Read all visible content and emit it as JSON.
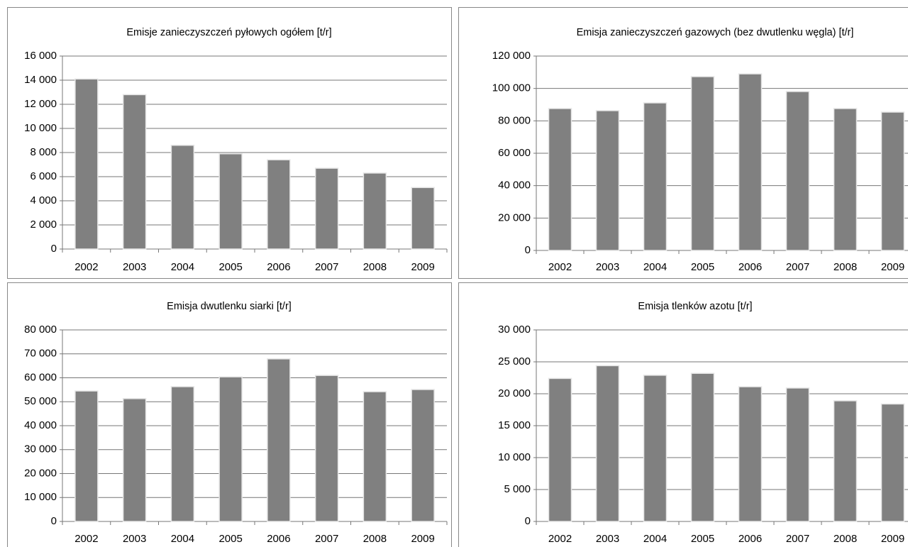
{
  "chart_data": [
    {
      "type": "bar",
      "title": "Emisje zanieczyszczeń pyłowych  ogółem [t/r]",
      "categories": [
        "2002",
        "2003",
        "2004",
        "2005",
        "2006",
        "2007",
        "2008",
        "2009"
      ],
      "values": [
        14100,
        12800,
        8600,
        7900,
        7400,
        6700,
        6300,
        5100
      ],
      "color": "#808080",
      "grid": true,
      "ylim": [
        0,
        16000
      ],
      "yticks": [
        0,
        {
          "value": 2000,
          "label": "2 000"
        },
        {
          "value": 4000,
          "label": "4 000"
        },
        {
          "value": 6000,
          "label": "6 000"
        },
        {
          "value": 8000,
          "label": "8 000"
        },
        {
          "value": 10000,
          "label": "10 000"
        },
        {
          "value": 12000,
          "label": "12 000"
        },
        {
          "value": 14000,
          "label": "14 000"
        },
        {
          "value": 16000,
          "label": "16 000"
        }
      ]
    },
    {
      "type": "bar",
      "title": "Emisja zanieczyszczeń gazowych (bez dwutlenku węgla) [t/r]",
      "categories": [
        "2002",
        "2003",
        "2004",
        "2005",
        "2006",
        "2007",
        "2008",
        "2009"
      ],
      "values": [
        87600,
        86300,
        91100,
        107300,
        109000,
        98100,
        87600,
        85400
      ],
      "color": "#808080",
      "grid": true,
      "ylim": [
        0,
        120000
      ],
      "yticks": [
        0,
        {
          "value": 20000,
          "label": "20 000"
        },
        {
          "value": 40000,
          "label": "40 000"
        },
        {
          "value": 60000,
          "label": "60 000"
        },
        {
          "value": 80000,
          "label": "80 000"
        },
        {
          "value": 100000,
          "label": "100 000"
        },
        {
          "value": 120000,
          "label": "120 000"
        }
      ]
    },
    {
      "type": "bar",
      "title": "Emisja dwutlenku siarki [t/r]",
      "categories": [
        "2002",
        "2003",
        "2004",
        "2005",
        "2006",
        "2007",
        "2008",
        "2009"
      ],
      "values": [
        54500,
        51300,
        56300,
        60400,
        67900,
        61000,
        54200,
        55100
      ],
      "color": "#808080",
      "grid": true,
      "ylim": [
        0,
        80000
      ],
      "yticks": [
        0,
        {
          "value": 10000,
          "label": "10 000"
        },
        {
          "value": 20000,
          "label": "20 000"
        },
        {
          "value": 30000,
          "label": "30 000"
        },
        {
          "value": 40000,
          "label": "40 000"
        },
        {
          "value": 50000,
          "label": "50 000"
        },
        {
          "value": 60000,
          "label": "60 000"
        },
        {
          "value": 70000,
          "label": "70 000"
        },
        {
          "value": 80000,
          "label": "80 000"
        }
      ]
    },
    {
      "type": "bar",
      "title": "Emisja tlenków azotu [t/r]",
      "categories": [
        "2002",
        "2003",
        "2004",
        "2005",
        "2006",
        "2007",
        "2008",
        "2009"
      ],
      "values": [
        22400,
        24400,
        22900,
        23200,
        21100,
        20900,
        18900,
        18400
      ],
      "color": "#808080",
      "grid": true,
      "ylim": [
        0,
        30000
      ],
      "yticks": [
        0,
        {
          "value": 5000,
          "label": "5 000"
        },
        {
          "value": 10000,
          "label": "10 000"
        },
        {
          "value": 15000,
          "label": "15 000"
        },
        {
          "value": 20000,
          "label": "20 000"
        },
        {
          "value": 25000,
          "label": "25 000"
        },
        {
          "value": 30000,
          "label": "30 000"
        }
      ]
    }
  ]
}
